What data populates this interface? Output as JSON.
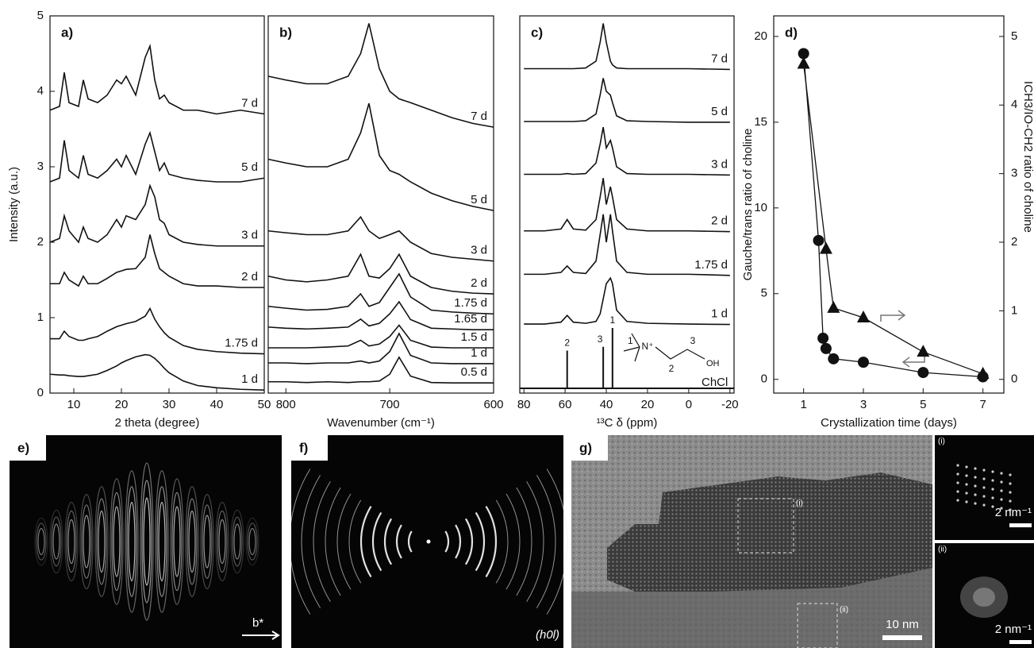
{
  "chart_data": [
    {
      "type": "line",
      "panel_label": "a)",
      "xlabel": "2 theta (degree)",
      "ylabel": "Intensity (a.u.)",
      "xlim": [
        5,
        50
      ],
      "xticks": [
        10,
        20,
        30,
        40,
        50
      ],
      "ylim": [
        0,
        5
      ],
      "yticks": [
        0,
        1,
        2,
        3,
        4,
        5
      ],
      "x": [
        5,
        7,
        8,
        9,
        11,
        12,
        13,
        15,
        17,
        19,
        20,
        21,
        23,
        25,
        26,
        27,
        28,
        29,
        30,
        33,
        36,
        40,
        45,
        50
      ],
      "series": [
        {
          "name": "7 d",
          "color": "#111111",
          "values": [
            3.75,
            3.8,
            4.25,
            3.85,
            3.8,
            4.15,
            3.9,
            3.85,
            3.95,
            4.15,
            4.1,
            4.2,
            3.95,
            4.45,
            4.6,
            4.15,
            3.9,
            3.95,
            3.85,
            3.75,
            3.75,
            3.7,
            3.75,
            3.7
          ]
        },
        {
          "name": "5 d",
          "color": "#111111",
          "values": [
            2.8,
            2.85,
            3.35,
            2.95,
            2.85,
            3.15,
            2.9,
            2.85,
            2.95,
            3.1,
            3.0,
            3.15,
            2.9,
            3.3,
            3.45,
            3.2,
            2.95,
            3.05,
            2.9,
            2.85,
            2.82,
            2.8,
            2.8,
            2.85
          ]
        },
        {
          "name": "3 d",
          "color": "#111111",
          "values": [
            2.0,
            2.05,
            2.35,
            2.15,
            2.0,
            2.2,
            2.05,
            2.0,
            2.1,
            2.3,
            2.2,
            2.35,
            2.3,
            2.5,
            2.75,
            2.6,
            2.3,
            2.25,
            2.1,
            2.0,
            1.97,
            1.95,
            1.95,
            1.95
          ]
        },
        {
          "name": "2 d",
          "color": "#111111",
          "values": [
            1.45,
            1.45,
            1.6,
            1.5,
            1.42,
            1.55,
            1.45,
            1.45,
            1.52,
            1.6,
            1.62,
            1.64,
            1.65,
            1.8,
            2.1,
            1.85,
            1.65,
            1.6,
            1.55,
            1.45,
            1.42,
            1.42,
            1.4,
            1.4
          ]
        },
        {
          "name": "1.75 d",
          "color": "#111111",
          "values": [
            0.72,
            0.72,
            0.82,
            0.75,
            0.7,
            0.7,
            0.72,
            0.75,
            0.82,
            0.88,
            0.9,
            0.92,
            0.95,
            1.02,
            1.12,
            0.98,
            0.88,
            0.8,
            0.74,
            0.63,
            0.58,
            0.55,
            0.53,
            0.52
          ]
        },
        {
          "name": "1 d",
          "color": "#111111",
          "values": [
            0.25,
            0.24,
            0.24,
            0.23,
            0.22,
            0.22,
            0.23,
            0.25,
            0.3,
            0.36,
            0.4,
            0.43,
            0.48,
            0.51,
            0.5,
            0.46,
            0.4,
            0.33,
            0.27,
            0.16,
            0.1,
            0.07,
            0.05,
            0.04
          ]
        }
      ]
    },
    {
      "type": "line",
      "panel_label": "b)",
      "xlabel": "Wavenumber (cm⁻¹)",
      "xlim": [
        817,
        600
      ],
      "xticks": [
        800,
        700,
        600
      ],
      "ylim": [
        0,
        10
      ],
      "x": [
        817,
        800,
        780,
        760,
        740,
        728,
        720,
        710,
        700,
        691,
        680,
        660,
        640,
        620,
        600
      ],
      "series": [
        {
          "name": "7 d",
          "color": "#111111",
          "values": [
            8.4,
            8.3,
            8.2,
            8.2,
            8.4,
            9.0,
            9.8,
            8.6,
            8.0,
            7.8,
            7.7,
            7.5,
            7.3,
            7.15,
            7.05
          ]
        },
        {
          "name": "5 d",
          "color": "#111111",
          "values": [
            6.2,
            6.1,
            6.0,
            6.0,
            6.2,
            6.9,
            7.68,
            6.3,
            5.9,
            5.8,
            5.6,
            5.3,
            5.1,
            4.95,
            4.84
          ]
        },
        {
          "name": "3 d",
          "color": "#111111",
          "values": [
            4.3,
            4.25,
            4.2,
            4.2,
            4.3,
            4.67,
            4.3,
            4.1,
            4.2,
            4.3,
            4.0,
            3.7,
            3.6,
            3.55,
            3.5
          ]
        },
        {
          "name": "2 d",
          "color": "#111111",
          "values": [
            3.1,
            3.0,
            2.95,
            3.0,
            3.1,
            3.68,
            3.1,
            3.05,
            3.3,
            3.68,
            3.1,
            2.8,
            2.7,
            2.65,
            2.63
          ]
        },
        {
          "name": "1.75 d",
          "color": "#111111",
          "values": [
            2.3,
            2.25,
            2.2,
            2.22,
            2.3,
            2.63,
            2.3,
            2.4,
            2.8,
            3.16,
            2.55,
            2.2,
            2.15,
            2.12,
            2.1
          ]
        },
        {
          "name": "1.65 d",
          "color": "#111111",
          "values": [
            1.75,
            1.72,
            1.7,
            1.72,
            1.75,
            1.96,
            1.78,
            1.85,
            2.1,
            2.42,
            1.95,
            1.72,
            1.7,
            1.68,
            1.68
          ]
        },
        {
          "name": "1.5 d",
          "color": "#111111",
          "values": [
            1.2,
            1.2,
            1.2,
            1.22,
            1.25,
            1.4,
            1.25,
            1.3,
            1.5,
            1.8,
            1.4,
            1.22,
            1.2,
            1.2,
            1.2
          ]
        },
        {
          "name": "1 d",
          "color": "#111111",
          "values": [
            0.8,
            0.8,
            0.78,
            0.8,
            0.8,
            0.85,
            0.8,
            0.85,
            1.1,
            1.58,
            1.0,
            0.8,
            0.78,
            0.78,
            0.78
          ]
        },
        {
          "name": "0.5 d",
          "color": "#111111",
          "values": [
            0.3,
            0.3,
            0.28,
            0.3,
            0.28,
            0.3,
            0.3,
            0.32,
            0.5,
            0.95,
            0.45,
            0.28,
            0.27,
            0.27,
            0.27
          ]
        }
      ]
    },
    {
      "type": "line",
      "panel_label": "c)",
      "xlabel": "¹³C δ (ppm)",
      "xlim": [
        82,
        -22
      ],
      "xticks": [
        80,
        60,
        40,
        20,
        0,
        -20
      ],
      "ylim": [
        0,
        10
      ],
      "x": [
        80,
        70,
        62,
        59,
        56,
        50,
        45,
        43,
        41.5,
        40,
        38,
        37,
        35,
        30,
        20,
        0,
        -20
      ],
      "series": [
        {
          "name": "7 d",
          "color": "#111111",
          "values": [
            8.6,
            8.6,
            8.6,
            8.6,
            8.6,
            8.62,
            8.8,
            9.3,
            9.8,
            9.3,
            8.8,
            8.7,
            8.62,
            8.6,
            8.6,
            8.6,
            8.58
          ]
        },
        {
          "name": "5 d",
          "color": "#111111",
          "values": [
            7.2,
            7.2,
            7.2,
            7.2,
            7.2,
            7.22,
            7.4,
            7.9,
            8.35,
            8.0,
            7.9,
            7.7,
            7.35,
            7.22,
            7.2,
            7.18,
            7.18
          ]
        },
        {
          "name": "3 d",
          "color": "#111111",
          "values": [
            5.8,
            5.8,
            5.8,
            5.82,
            5.8,
            5.82,
            6.1,
            6.6,
            7.05,
            6.5,
            6.7,
            6.5,
            6.0,
            5.82,
            5.8,
            5.8,
            5.78
          ]
        },
        {
          "name": "2 d",
          "color": "#111111",
          "values": [
            4.3,
            4.3,
            4.35,
            4.6,
            4.35,
            4.32,
            4.6,
            5.2,
            5.7,
            5.0,
            5.47,
            5.2,
            4.6,
            4.35,
            4.3,
            4.3,
            4.28
          ]
        },
        {
          "name": "1.75 d",
          "color": "#111111",
          "values": [
            3.15,
            3.15,
            3.2,
            3.37,
            3.2,
            3.17,
            3.5,
            4.2,
            4.74,
            4.0,
            4.74,
            4.3,
            3.5,
            3.2,
            3.15,
            3.15,
            3.12
          ]
        },
        {
          "name": "1 d",
          "color": "#111111",
          "values": [
            1.83,
            1.83,
            1.88,
            2.06,
            1.88,
            1.85,
            1.9,
            2.1,
            2.5,
            2.9,
            3.05,
            2.9,
            2.2,
            1.9,
            1.85,
            1.83,
            1.82
          ]
        }
      ],
      "sticks": {
        "x": [
          59,
          41.5,
          37
        ],
        "values": [
          1.0,
          1.1,
          1.6
        ],
        "labels": [
          "2",
          "3",
          "1"
        ],
        "color": "#111111"
      },
      "structure_labels": [
        "1",
        "N⁺",
        "2",
        "3",
        "OH",
        "ChCl"
      ]
    },
    {
      "type": "line",
      "panel_label": "d)",
      "xlabel": "Crystallization time (days)",
      "ylabel": "Gauche/trans ratio of choline",
      "y2label": "ICH3/IO-CH2 ratio of choline",
      "xlim": [
        0,
        7.7
      ],
      "xticks": [
        1,
        3,
        5,
        7
      ],
      "ylim": [
        -0.8,
        21.2
      ],
      "yticks": [
        0,
        5,
        10,
        15,
        20
      ],
      "y2lim": [
        -0.2,
        5.3
      ],
      "y2ticks": [
        0,
        1,
        2,
        3,
        4,
        5
      ],
      "series": [
        {
          "marker": "circle",
          "color": "#111111",
          "x": [
            1,
            1.5,
            1.65,
            1.75,
            2,
            3,
            5,
            7
          ],
          "values": [
            19,
            8.1,
            2.4,
            1.8,
            1.2,
            1.0,
            0.4,
            0.15
          ]
        },
        {
          "marker": "triangle",
          "color": "#111111",
          "axis": "y2",
          "x": [
            1,
            1.75,
            2,
            3,
            5,
            7
          ],
          "values": [
            4.6,
            1.9,
            1.04,
            0.9,
            0.4,
            0.08
          ]
        }
      ]
    }
  ],
  "images": [
    {
      "panel_label": "e)",
      "annotations": [
        "b*"
      ]
    },
    {
      "panel_label": "f)",
      "annotations": [
        "(h0l)"
      ]
    },
    {
      "panel_label": "g)",
      "annotations": [
        "(i)",
        "(ii)",
        "10 nm"
      ],
      "insets": [
        {
          "panel_label": "(i)",
          "scale": "2 nm⁻¹"
        },
        {
          "panel_label": "(ii)",
          "scale": "2 nm⁻¹"
        }
      ]
    }
  ]
}
